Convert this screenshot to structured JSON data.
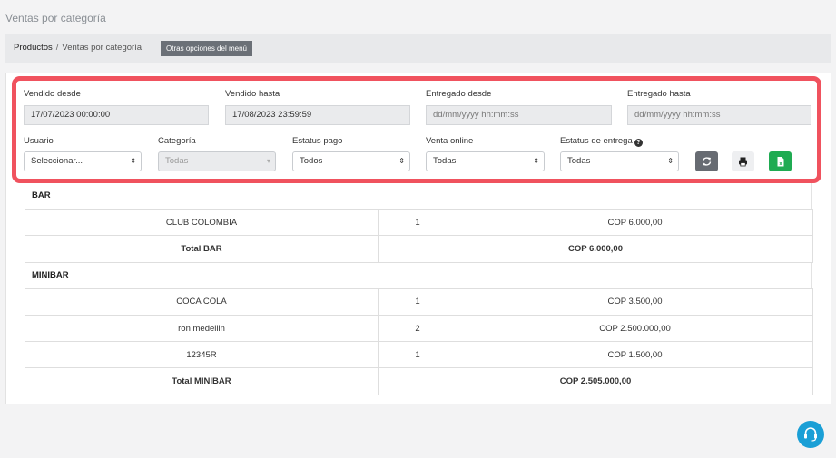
{
  "page": {
    "title": "Ventas por categoría"
  },
  "breadcrumb": {
    "items": [
      "Productos",
      "Ventas por categoría"
    ],
    "separator": "/",
    "menu_button": "Otras opciones del menú"
  },
  "filters": {
    "vendido_desde": {
      "label": "Vendido desde",
      "value": "17/07/2023 00:00:00"
    },
    "vendido_hasta": {
      "label": "Vendido hasta",
      "value": "17/08/2023 23:59:59"
    },
    "entregado_desde": {
      "label": "Entregado desde",
      "placeholder": "dd/mm/yyyy hh:mm:ss"
    },
    "entregado_hasta": {
      "label": "Entregado hasta",
      "placeholder": "dd/mm/yyyy hh:mm:ss"
    },
    "usuario": {
      "label": "Usuario",
      "value": "Seleccionar..."
    },
    "categoria": {
      "label": "Categoría",
      "value": "Todas"
    },
    "estatus_pago": {
      "label": "Estatus pago",
      "value": "Todos"
    },
    "venta_online": {
      "label": "Venta online",
      "value": "Todas"
    },
    "estatus_entrega": {
      "label": "Estatus de entrega",
      "value": "Todas"
    }
  },
  "report": {
    "categories": [
      {
        "name": "BAR",
        "rows": [
          {
            "product": "CLUB COLOMBIA",
            "qty": "1",
            "amount": "COP 6.000,00"
          }
        ],
        "total_label": "Total BAR",
        "total_amount": "COP 6.000,00"
      },
      {
        "name": "MINIBAR",
        "rows": [
          {
            "product": "COCA COLA",
            "qty": "1",
            "amount": "COP 3.500,00"
          },
          {
            "product": "ron medellin",
            "qty": "2",
            "amount": "COP 2.500.000,00"
          },
          {
            "product": "12345R",
            "qty": "1",
            "amount": "COP 1.500,00"
          }
        ],
        "total_label": "Total MINIBAR",
        "total_amount": "COP 2.505.000,00"
      }
    ]
  },
  "colors": {
    "highlight": "#f0525e",
    "excel_button": "#1fab52",
    "refresh_button": "#676b72",
    "chat_button": "#1a9fd6"
  },
  "icons": {
    "refresh": "refresh-icon",
    "print": "print-icon",
    "excel": "excel-icon",
    "help": "help-icon",
    "chat": "chat-support-icon"
  }
}
